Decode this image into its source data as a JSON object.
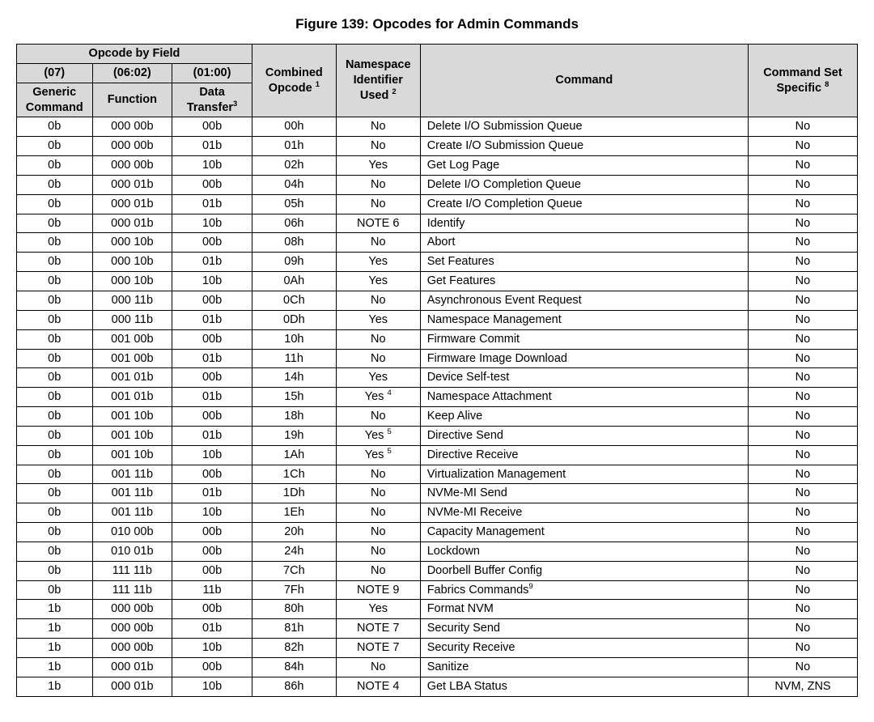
{
  "title": "Figure 139: Opcodes for Admin Commands",
  "header": {
    "group_opcode_by_field": "Opcode by Field",
    "bits07": "(07)",
    "bits0602": "(06:02)",
    "bits0100": "(01:00)",
    "generic_command": "Generic Command",
    "function": "Function",
    "data_transfer_html": "Data Transfer<sup>3</sup>",
    "combined_opcode_html": "Combined Opcode <sup>1</sup>",
    "nsid_used_html": "Namespace Identifier Used <sup>2</sup>",
    "command": "Command",
    "command_set_specific_html": "Command Set Specific <sup>8</sup>"
  },
  "rows": [
    {
      "g": "0b",
      "f": "000 00b",
      "d": "00b",
      "op": "00h",
      "ns": "No",
      "cmd": "Delete I/O Submission Queue",
      "spec": "No"
    },
    {
      "g": "0b",
      "f": "000 00b",
      "d": "01b",
      "op": "01h",
      "ns": "No",
      "cmd": "Create I/O Submission Queue",
      "spec": "No"
    },
    {
      "g": "0b",
      "f": "000 00b",
      "d": "10b",
      "op": "02h",
      "ns": "Yes",
      "cmd": "Get Log Page",
      "spec": "No"
    },
    {
      "g": "0b",
      "f": "000 01b",
      "d": "00b",
      "op": "04h",
      "ns": "No",
      "cmd": "Delete I/O Completion Queue",
      "spec": "No"
    },
    {
      "g": "0b",
      "f": "000 01b",
      "d": "01b",
      "op": "05h",
      "ns": "No",
      "cmd": "Create I/O Completion Queue",
      "spec": "No"
    },
    {
      "g": "0b",
      "f": "000 01b",
      "d": "10b",
      "op": "06h",
      "ns": "NOTE 6",
      "cmd": "Identify",
      "spec": "No"
    },
    {
      "g": "0b",
      "f": "000 10b",
      "d": "00b",
      "op": "08h",
      "ns": "No",
      "cmd": "Abort",
      "spec": "No"
    },
    {
      "g": "0b",
      "f": "000 10b",
      "d": "01b",
      "op": "09h",
      "ns": "Yes",
      "cmd": "Set Features",
      "spec": "No"
    },
    {
      "g": "0b",
      "f": "000 10b",
      "d": "10b",
      "op": "0Ah",
      "ns": "Yes",
      "cmd": "Get Features",
      "spec": "No"
    },
    {
      "g": "0b",
      "f": "000 11b",
      "d": "00b",
      "op": "0Ch",
      "ns": "No",
      "cmd": "Asynchronous Event Request",
      "spec": "No"
    },
    {
      "g": "0b",
      "f": "000 11b",
      "d": "01b",
      "op": "0Dh",
      "ns": "Yes",
      "cmd": "Namespace Management",
      "spec": "No"
    },
    {
      "g": "0b",
      "f": "001 00b",
      "d": "00b",
      "op": "10h",
      "ns": "No",
      "cmd": "Firmware Commit",
      "spec": "No"
    },
    {
      "g": "0b",
      "f": "001 00b",
      "d": "01b",
      "op": "11h",
      "ns": "No",
      "cmd": "Firmware Image Download",
      "spec": "No"
    },
    {
      "g": "0b",
      "f": "001 01b",
      "d": "00b",
      "op": "14h",
      "ns": "Yes",
      "cmd": "Device Self-test",
      "spec": "No"
    },
    {
      "g": "0b",
      "f": "001 01b",
      "d": "01b",
      "op": "15h",
      "ns_html": "Yes <sup>4</sup>",
      "cmd": "Namespace Attachment",
      "spec": "No"
    },
    {
      "g": "0b",
      "f": "001 10b",
      "d": "00b",
      "op": "18h",
      "ns": "No",
      "cmd": "Keep Alive",
      "spec": "No"
    },
    {
      "g": "0b",
      "f": "001 10b",
      "d": "01b",
      "op": "19h",
      "ns_html": "Yes <sup>5</sup>",
      "cmd": "Directive Send",
      "spec": "No"
    },
    {
      "g": "0b",
      "f": "001 10b",
      "d": "10b",
      "op": "1Ah",
      "ns_html": "Yes <sup>5</sup>",
      "cmd": "Directive Receive",
      "spec": "No"
    },
    {
      "g": "0b",
      "f": "001 11b",
      "d": "00b",
      "op": "1Ch",
      "ns": "No",
      "cmd": "Virtualization Management",
      "spec": "No"
    },
    {
      "g": "0b",
      "f": "001 11b",
      "d": "01b",
      "op": "1Dh",
      "ns": "No",
      "cmd": "NVMe-MI Send",
      "spec": "No"
    },
    {
      "g": "0b",
      "f": "001 11b",
      "d": "10b",
      "op": "1Eh",
      "ns": "No",
      "cmd": "NVMe-MI Receive",
      "spec": "No"
    },
    {
      "g": "0b",
      "f": "010 00b",
      "d": "00b",
      "op": "20h",
      "ns": "No",
      "cmd": "Capacity Management",
      "spec": "No"
    },
    {
      "g": "0b",
      "f": "010 01b",
      "d": "00b",
      "op": "24h",
      "ns": "No",
      "cmd": "Lockdown",
      "spec": "No"
    },
    {
      "g": "0b",
      "f": "111 11b",
      "d": "00b",
      "op": "7Ch",
      "ns": "No",
      "cmd": "Doorbell Buffer Config",
      "spec": "No"
    },
    {
      "g": "0b",
      "f": "111 11b",
      "d": "11b",
      "op": "7Fh",
      "ns": "NOTE 9",
      "cmd_html": "Fabrics Commands<sup>9</sup>",
      "spec": "No"
    },
    {
      "g": "1b",
      "f": "000 00b",
      "d": "00b",
      "op": "80h",
      "ns": "Yes",
      "cmd": "Format NVM",
      "spec": "No"
    },
    {
      "g": "1b",
      "f": "000 00b",
      "d": "01b",
      "op": "81h",
      "ns": "NOTE 7",
      "cmd": "Security Send",
      "spec": "No"
    },
    {
      "g": "1b",
      "f": "000 00b",
      "d": "10b",
      "op": "82h",
      "ns": "NOTE 7",
      "cmd": "Security Receive",
      "spec": "No"
    },
    {
      "g": "1b",
      "f": "000 01b",
      "d": "00b",
      "op": "84h",
      "ns": "No",
      "cmd": "Sanitize",
      "spec": "No"
    },
    {
      "g": "1b",
      "f": "000 01b",
      "d": "10b",
      "op": "86h",
      "ns": "NOTE 4",
      "cmd": "Get LBA Status",
      "spec": "NVM, ZNS"
    }
  ]
}
